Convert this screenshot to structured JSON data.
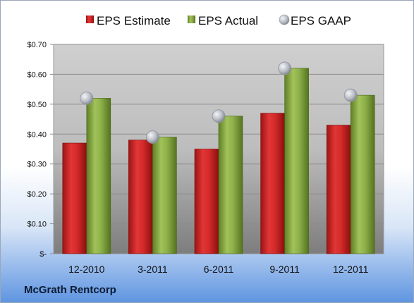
{
  "company": "McGrath Rentcorp",
  "colors": {
    "estimate": "#d42a2a",
    "actual": "#8db04a",
    "gaap": "#b8bcc4"
  },
  "chart_data": {
    "type": "bar",
    "title": "",
    "xlabel": "",
    "ylabel": "",
    "categories": [
      "12-2010",
      "3-2011",
      "6-2011",
      "9-2011",
      "12-2011"
    ],
    "series": [
      {
        "name": "EPS Estimate",
        "kind": "bar",
        "values": [
          0.37,
          0.38,
          0.35,
          0.47,
          0.43
        ]
      },
      {
        "name": "EPS Actual",
        "kind": "bar",
        "values": [
          0.52,
          0.39,
          0.46,
          0.62,
          0.53
        ]
      },
      {
        "name": "EPS GAAP",
        "kind": "marker",
        "values": [
          0.52,
          0.39,
          0.46,
          0.62,
          0.53
        ]
      }
    ],
    "ylim": [
      0,
      0.7
    ],
    "yticks": [
      {
        "value": 0.0,
        "label": "$-"
      },
      {
        "value": 0.1,
        "label": "$0.10"
      },
      {
        "value": 0.2,
        "label": "$0.20"
      },
      {
        "value": 0.3,
        "label": "$0.30"
      },
      {
        "value": 0.4,
        "label": "$0.40"
      },
      {
        "value": 0.5,
        "label": "$0.50"
      },
      {
        "value": 0.6,
        "label": "$0.60"
      },
      {
        "value": 0.7,
        "label": "$0.70"
      }
    ],
    "grid": true,
    "legend": "top"
  }
}
